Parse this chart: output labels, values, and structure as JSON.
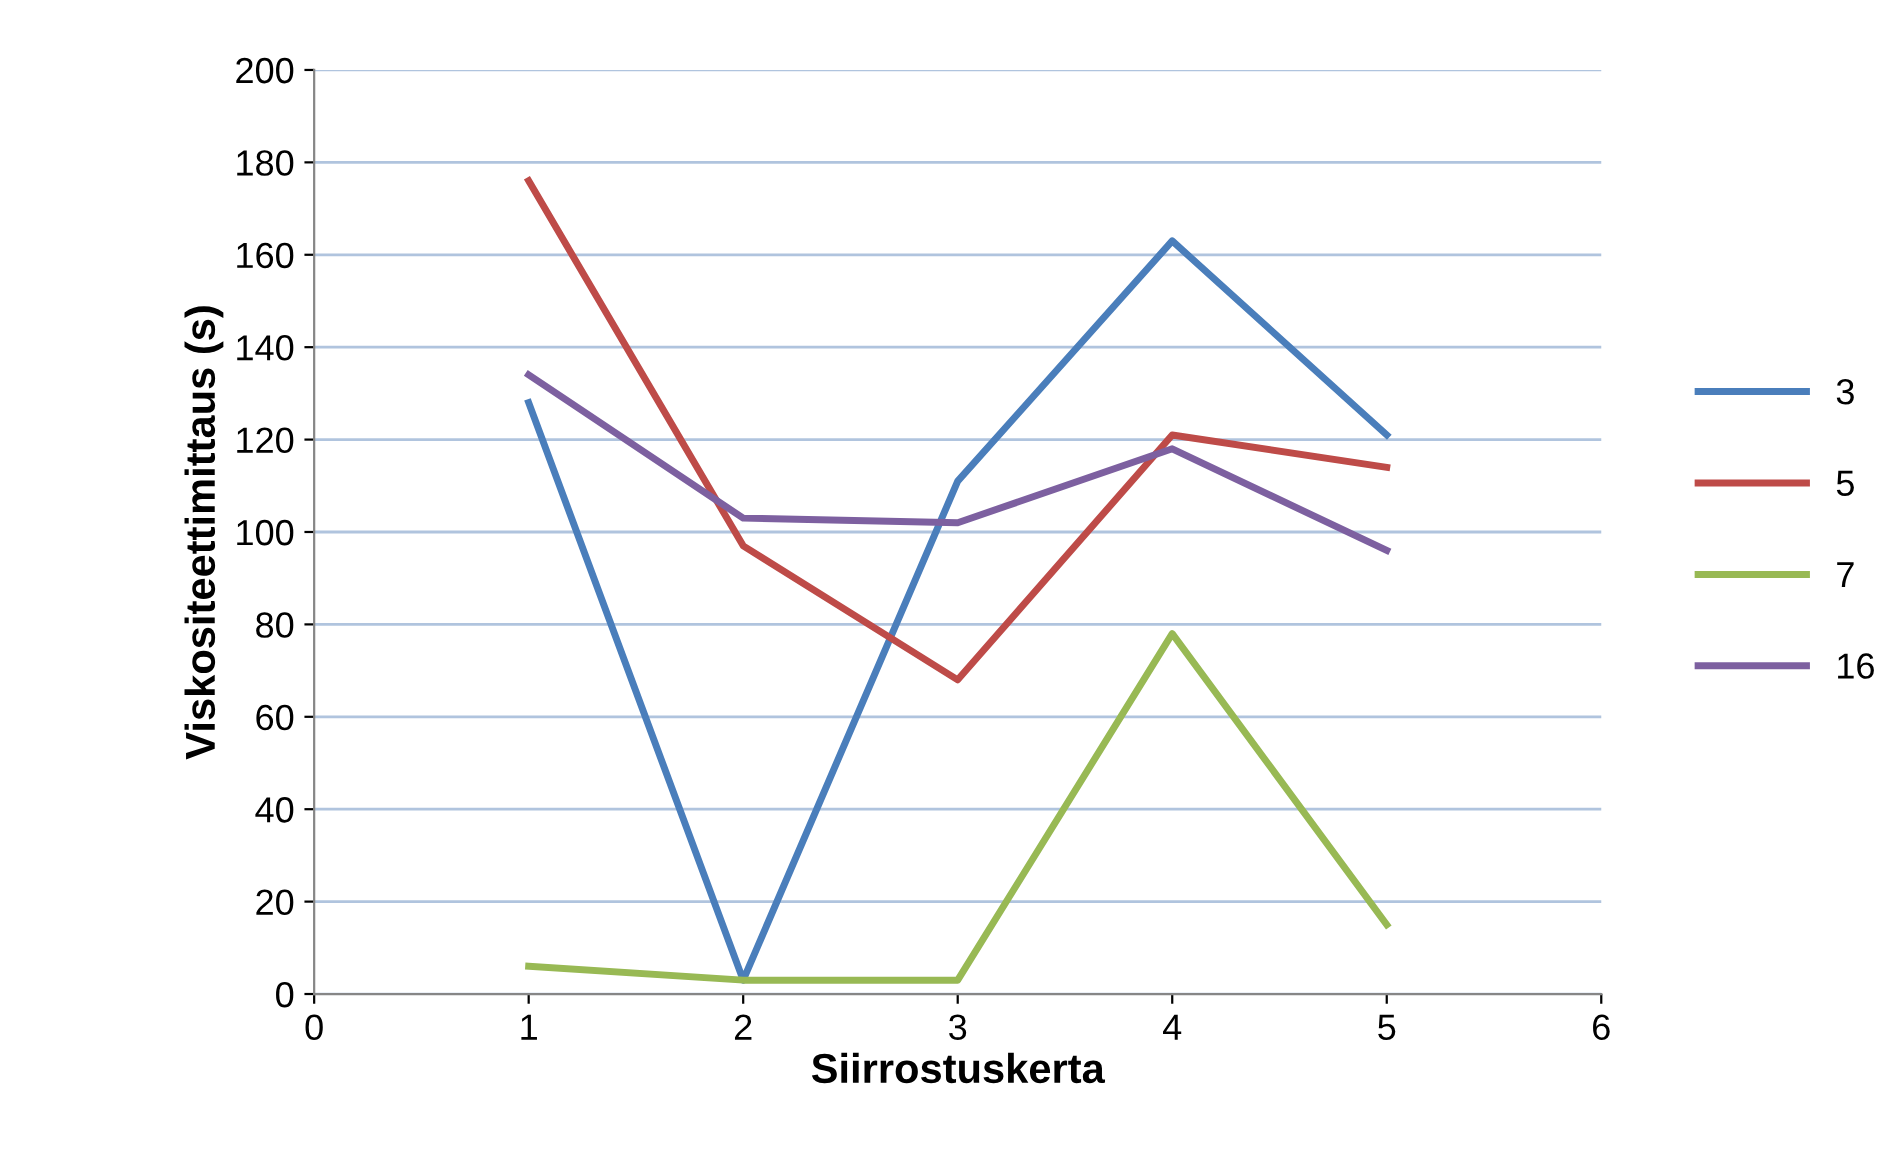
{
  "chart_data": {
    "type": "line",
    "xlabel": "Siirrostuskerta",
    "ylabel": "Viskositeettimittaus (s)",
    "xlim": [
      0,
      6
    ],
    "xticks": [
      0,
      1,
      2,
      3,
      4,
      5,
      6
    ],
    "ylim": [
      0,
      200
    ],
    "yticks": [
      0,
      20,
      40,
      60,
      80,
      100,
      120,
      140,
      160,
      180,
      200
    ],
    "grid": "y",
    "legend": "right",
    "marker": "none",
    "line_style": "solid",
    "series": [
      {
        "name": "3",
        "color": "#4a7ebb",
        "x": [
          1,
          2,
          3,
          4,
          5
        ],
        "values": [
          128,
          3,
          111,
          163,
          121
        ]
      },
      {
        "name": "5",
        "color": "#be4b48",
        "x": [
          1,
          2,
          3,
          4,
          5
        ],
        "values": [
          176,
          97,
          68,
          121,
          114
        ]
      },
      {
        "name": "7",
        "color": "#98b954",
        "x": [
          1,
          2,
          3,
          4,
          5
        ],
        "values": [
          6,
          3,
          3,
          78,
          15
        ]
      },
      {
        "name": "16",
        "color": "#7d60a0",
        "x": [
          1,
          2,
          3,
          4,
          5
        ],
        "values": [
          134,
          103,
          102,
          118,
          96
        ]
      }
    ]
  }
}
